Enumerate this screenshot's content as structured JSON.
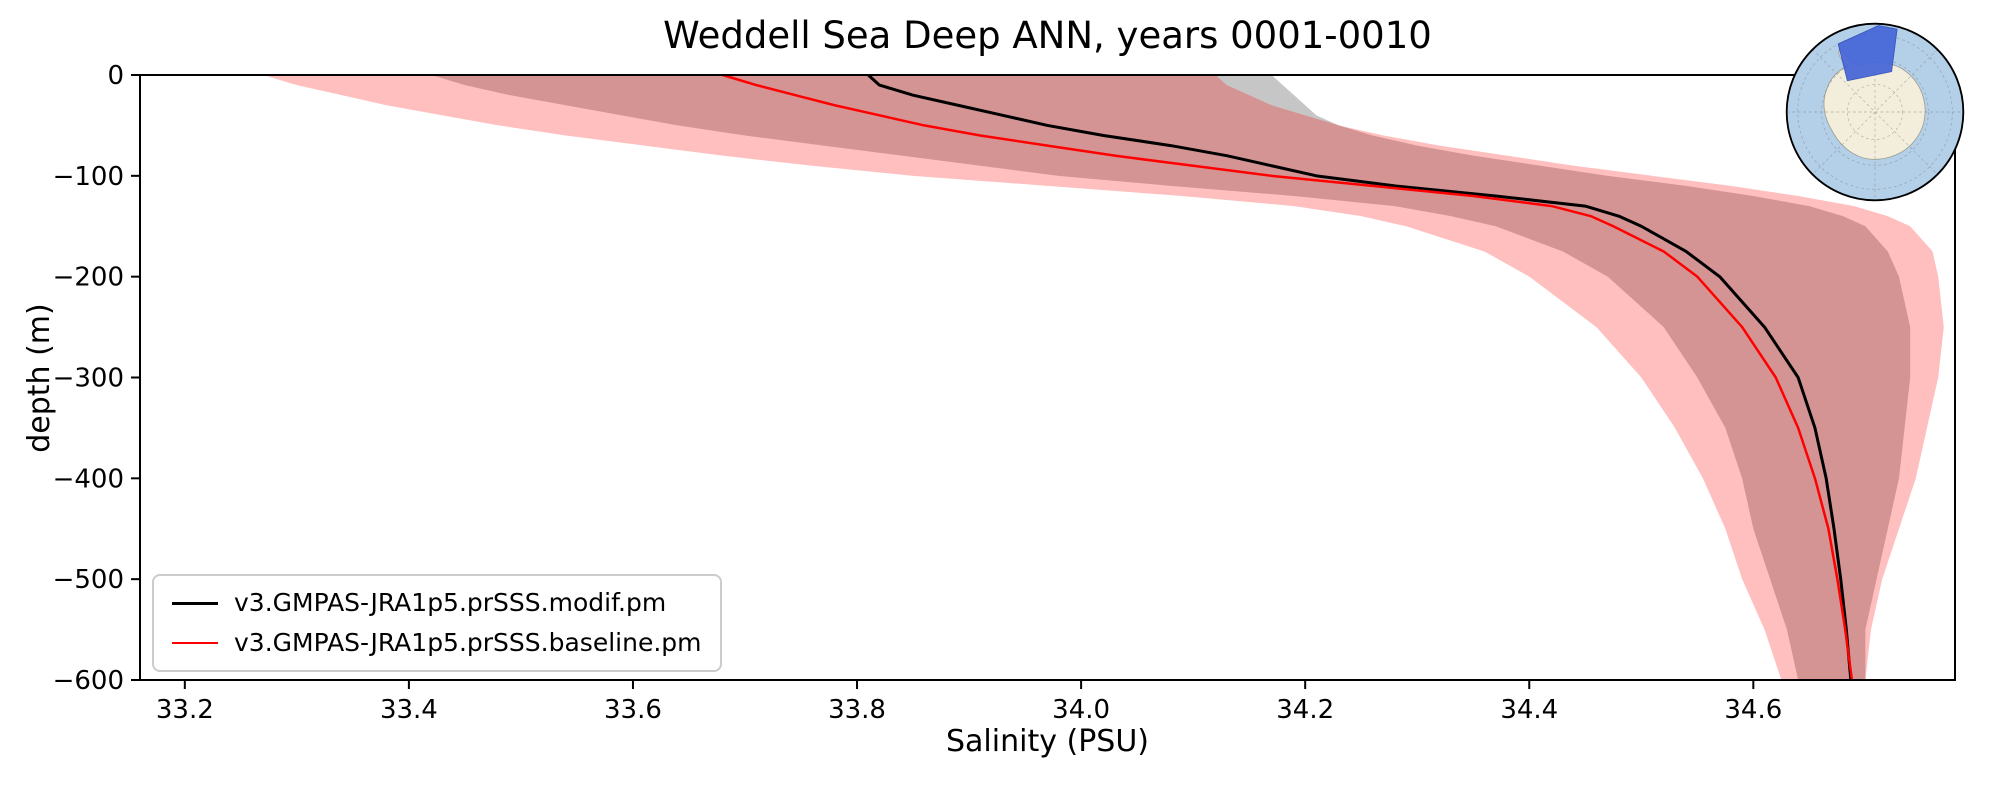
{
  "figure": {
    "title": "Weddell Sea Deep ANN, years 0001-0010",
    "xlabel": "Salinity (PSU)",
    "ylabel": "depth (m)"
  },
  "chart_data": {
    "type": "line",
    "title": "Weddell Sea Deep ANN, years 0001-0010",
    "xlabel": "Salinity (PSU)",
    "ylabel": "depth (m)",
    "xlim": [
      33.16,
      34.78
    ],
    "ylim": [
      -600,
      0
    ],
    "grid": false,
    "legend_position": "lower left",
    "x_ticks": [
      33.2,
      33.4,
      33.6,
      33.8,
      34.0,
      34.2,
      34.4,
      34.6
    ],
    "x_tick_labels": [
      "33.2",
      "33.4",
      "33.6",
      "33.8",
      "34.0",
      "34.2",
      "34.4",
      "34.6"
    ],
    "y_ticks": [
      0,
      -100,
      -200,
      -300,
      -400,
      -500,
      -600
    ],
    "y_tick_labels": [
      "0",
      "−100",
      "−200",
      "−300",
      "−400",
      "−500",
      "−600"
    ],
    "depths": [
      0,
      -10,
      -20,
      -30,
      -40,
      -50,
      -60,
      -70,
      -80,
      -90,
      -100,
      -110,
      -120,
      -130,
      -140,
      -150,
      -175,
      -200,
      -250,
      -300,
      -350,
      -400,
      -450,
      -500,
      -550,
      -600
    ],
    "series": [
      {
        "key": "modif",
        "name": "v3.GMPAS-JRA1p5.prSSS.modif.pm",
        "color": "#000000",
        "line_width": 3,
        "band_color": "rgba(128,128,128,0.45)",
        "salinity": [
          33.81,
          33.82,
          33.85,
          33.89,
          33.93,
          33.97,
          34.02,
          34.08,
          34.13,
          34.17,
          34.21,
          34.28,
          34.37,
          34.45,
          34.48,
          34.5,
          34.54,
          34.57,
          34.61,
          34.64,
          34.655,
          34.665,
          34.672,
          34.678,
          34.683,
          34.687
        ],
        "band_min": [
          33.42,
          33.45,
          33.49,
          33.54,
          33.59,
          33.64,
          33.7,
          33.77,
          33.84,
          33.91,
          33.98,
          34.08,
          34.19,
          34.28,
          34.33,
          34.37,
          34.43,
          34.47,
          34.52,
          34.55,
          34.575,
          34.59,
          34.6,
          34.615,
          34.63,
          34.64
        ],
        "band_max": [
          34.17,
          34.18,
          34.19,
          34.2,
          34.21,
          34.23,
          34.26,
          34.3,
          34.35,
          34.41,
          34.47,
          34.54,
          34.6,
          34.65,
          34.68,
          34.7,
          34.72,
          34.73,
          34.74,
          34.74,
          34.735,
          34.73,
          34.72,
          34.71,
          34.7,
          34.7
        ]
      },
      {
        "key": "baseline",
        "name": "v3.GMPAS-JRA1p5.prSSS.baseline.pm",
        "color": "#ff0000",
        "line_width": 2.5,
        "band_color": "rgba(255,0,0,0.25)",
        "salinity": [
          33.68,
          33.71,
          33.745,
          33.78,
          33.82,
          33.86,
          33.91,
          33.97,
          34.03,
          34.1,
          34.17,
          34.26,
          34.35,
          34.42,
          34.455,
          34.475,
          34.52,
          34.55,
          34.59,
          34.62,
          34.64,
          34.655,
          34.667,
          34.675,
          34.682,
          34.688
        ],
        "band_min": [
          33.27,
          33.3,
          33.34,
          33.38,
          33.43,
          33.48,
          33.54,
          33.61,
          33.68,
          33.76,
          33.85,
          33.97,
          34.09,
          34.19,
          34.25,
          34.29,
          34.36,
          34.4,
          34.46,
          34.5,
          34.53,
          34.555,
          34.575,
          34.59,
          34.61,
          34.625
        ],
        "band_max": [
          34.12,
          34.13,
          34.15,
          34.17,
          34.2,
          34.23,
          34.27,
          34.32,
          34.38,
          34.44,
          34.51,
          34.58,
          34.64,
          34.69,
          34.72,
          34.74,
          34.76,
          34.765,
          34.77,
          34.765,
          34.755,
          34.745,
          34.73,
          34.715,
          34.705,
          34.7
        ]
      }
    ],
    "inset_map": {
      "region": "Weddell Sea",
      "ocean_color": "#b4cfe8",
      "land_color": "#f2eedb",
      "highlight_color": "#4565d8",
      "outline_color": "#000000"
    }
  }
}
